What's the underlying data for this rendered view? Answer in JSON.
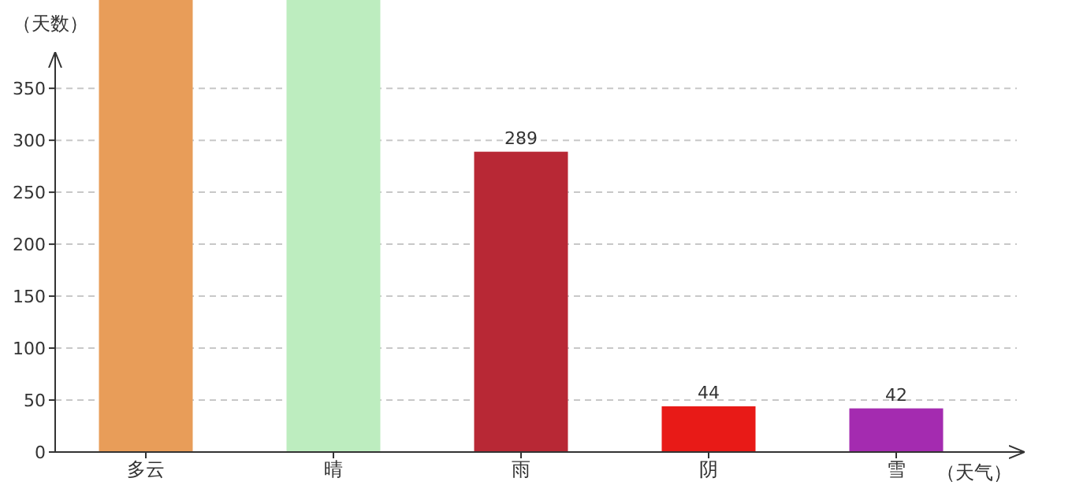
{
  "chart_data": {
    "type": "bar",
    "xlabel": "（天气）",
    "ylabel": "（天数）",
    "categories": [
      "多云",
      "晴",
      "雨",
      "阴",
      "雪"
    ],
    "values": [
      435,
      435,
      289,
      44,
      42
    ],
    "colors": [
      "#e89d59",
      "#bdedbf",
      "#b82835",
      "#e81a17",
      "#a42bb0"
    ],
    "value_labels": [
      null,
      null,
      "289",
      "44",
      "42"
    ],
    "ylim": [
      0,
      435
    ],
    "yticks": [
      0,
      50,
      100,
      150,
      200,
      250,
      300,
      350
    ],
    "grid": "y"
  }
}
